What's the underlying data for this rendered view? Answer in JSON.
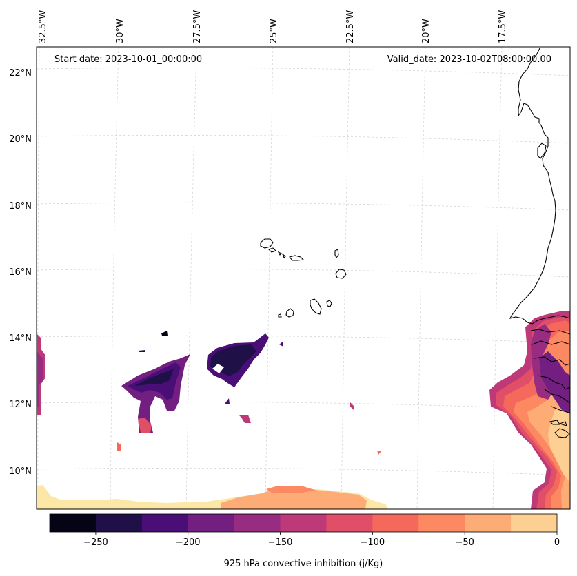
{
  "map": {
    "start_date": "Start date: 2023-10-01_00:00:00",
    "valid_date": "Valid_date: 2023-10-02T08:00:00.00",
    "longitude_labels": [
      "32.5°W",
      "30°W",
      "27.5°W",
      "25°W",
      "22.5°W",
      "20°W",
      "17.5°W"
    ],
    "latitude_labels": [
      "22°N",
      "20°N",
      "18°N",
      "16°N",
      "14°N",
      "12°N",
      "10°N"
    ]
  },
  "colorbar": {
    "title": "925 hPa convective inhibition (j/Kg)",
    "tick_labels": [
      "−250",
      "−200",
      "−150",
      "−100",
      "−50",
      "0"
    ],
    "range": [
      -275,
      0
    ],
    "levels": [
      -275,
      -250,
      -225,
      -200,
      -175,
      -150,
      -125,
      -100,
      -75,
      -50,
      -25,
      0
    ],
    "colors": [
      "#050416",
      "#1f1147",
      "#4a0f77",
      "#721f81",
      "#972c80",
      "#bd3977",
      "#e04f67",
      "#f4695c",
      "#fc8961",
      "#feac75",
      "#fecf92",
      "#fde7a6"
    ]
  }
}
